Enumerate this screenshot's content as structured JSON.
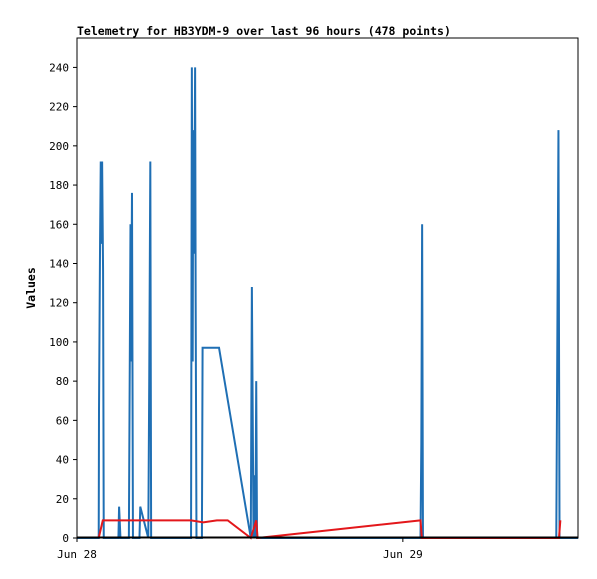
{
  "chart_data": {
    "type": "line",
    "title": "Telemetry for HB3YDM-9 over last 96 hours (478 points)",
    "xlabel": "",
    "ylabel": "Values",
    "x_ticks": [
      {
        "label": "Jun 28",
        "value": 0
      },
      {
        "label": "Jun 29",
        "value": 24
      }
    ],
    "xlim": [
      0,
      36.9
    ],
    "ylim": [
      0,
      255
    ],
    "y_ticks": [
      0,
      20,
      40,
      60,
      80,
      100,
      120,
      140,
      160,
      180,
      200,
      220,
      240
    ],
    "grid": false,
    "legend": "none",
    "series": [
      {
        "color": "#1f6fb4",
        "x": [
          0.0,
          1.6,
          1.62,
          1.7,
          1.75,
          1.8,
          1.85,
          1.92,
          1.97,
          2.02,
          2.06,
          2.1,
          2.3,
          3.05,
          3.1,
          3.2,
          3.82,
          3.88,
          3.94,
          3.98,
          4.05,
          4.12,
          4.6,
          4.66,
          5.25,
          5.32,
          5.4,
          5.46,
          8.4,
          8.46,
          8.52,
          8.56,
          8.63,
          8.7,
          8.74,
          8.8,
          8.86,
          8.92,
          9.2,
          9.25,
          9.3,
          10.4,
          10.46,
          12.8,
          12.88,
          12.94,
          13.0,
          13.08,
          13.14,
          13.2,
          13.26,
          13.35,
          25.3,
          25.36,
          25.42,
          25.48,
          35.3,
          35.38,
          35.46,
          35.54,
          36.9
        ],
        "y": [
          0,
          0,
          65,
          152,
          192,
          150,
          192,
          136,
          0,
          0,
          0,
          0,
          0,
          0,
          16,
          0,
          0,
          80,
          160,
          90,
          176,
          0,
          0,
          16,
          0,
          80,
          192,
          0,
          0,
          240,
          90,
          208,
          145,
          240,
          120,
          0,
          0,
          0,
          0,
          97,
          97,
          97,
          97,
          0,
          128,
          65,
          0,
          32,
          0,
          80,
          0,
          0,
          0,
          48,
          160,
          0,
          0,
          104,
          208,
          0,
          0
        ]
      },
      {
        "color": "#e3171b",
        "x": [
          1.6,
          1.9,
          2.12,
          3.1,
          3.2,
          8.4,
          9.3,
          10.3,
          11.1,
          12.8,
          13.2,
          13.3,
          25.3,
          25.4,
          35.5,
          35.6
        ],
        "y": [
          0,
          9,
          9,
          9,
          9,
          9,
          8,
          9,
          9,
          0,
          9,
          0,
          9,
          0,
          0,
          9
        ]
      }
    ]
  }
}
